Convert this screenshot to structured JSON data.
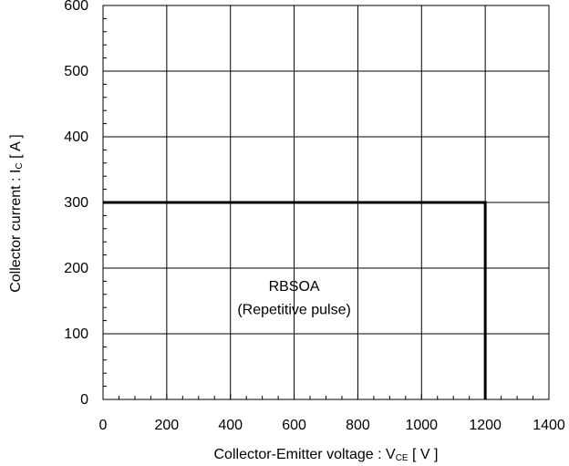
{
  "chart_data": {
    "type": "line",
    "title": "",
    "xlabel": {
      "main": "Collector-Emitter voltage : V",
      "sub": "CE",
      "unit": " [ V ]"
    },
    "ylabel": {
      "main": "Collector current : I",
      "sub": "C",
      "unit": " [ A ]"
    },
    "xlim": [
      0,
      1400
    ],
    "ylim": [
      0,
      600
    ],
    "xticks": [
      0,
      200,
      400,
      600,
      800,
      1000,
      1200,
      1400
    ],
    "yticks": [
      0,
      100,
      200,
      300,
      400,
      500,
      600
    ],
    "x_minor_step": 50,
    "y_minor_step": 20,
    "grid": true,
    "series": [
      {
        "x": [
          0,
          1200,
          1200
        ],
        "y": [
          300,
          300,
          0
        ]
      }
    ],
    "annotations": [
      {
        "text": "RBSOA",
        "x": 600,
        "y": 165
      },
      {
        "text": "(Repetitive pulse)",
        "x": 600,
        "y": 130
      }
    ],
    "colors": {
      "line": "#000000",
      "grid": "#000000"
    }
  }
}
